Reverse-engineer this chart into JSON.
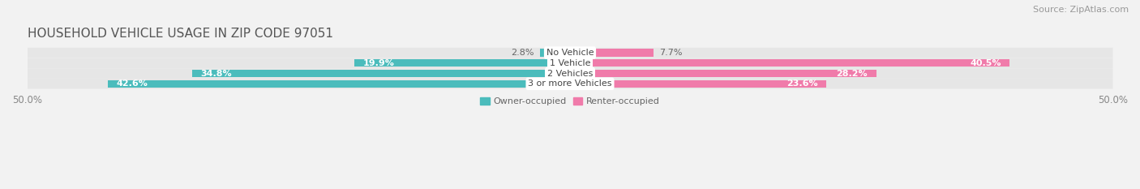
{
  "title": "HOUSEHOLD VEHICLE USAGE IN ZIP CODE 97051",
  "source": "Source: ZipAtlas.com",
  "categories": [
    "No Vehicle",
    "1 Vehicle",
    "2 Vehicles",
    "3 or more Vehicles"
  ],
  "owner_values": [
    2.8,
    19.9,
    34.8,
    42.6
  ],
  "renter_values": [
    7.7,
    40.5,
    28.2,
    23.6
  ],
  "owner_color": "#4BBCBC",
  "renter_color": "#F07BAA",
  "background_color": "#F2F2F2",
  "bar_background_color": "#E2E2E2",
  "row_background_color": "#E6E6E6",
  "xlim": 50.0,
  "bar_height": 0.72,
  "title_fontsize": 11,
  "source_fontsize": 8,
  "label_fontsize": 8,
  "tick_fontsize": 8.5,
  "category_fontsize": 8
}
